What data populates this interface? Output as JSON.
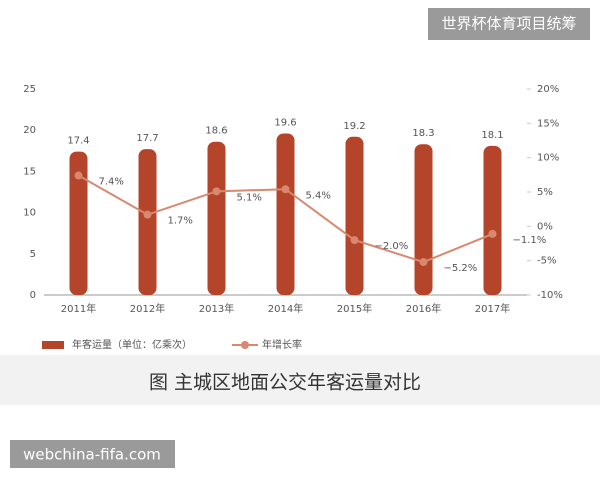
{
  "watermark_top": "世界杯体育项目统筹",
  "watermark_bottom": "webchina-fifa.com",
  "chart_data": {
    "type": "bar",
    "title": "图 主城区地面公交年客运量对比",
    "categories": [
      "2011年",
      "2012年",
      "2013年",
      "2014年",
      "2015年",
      "2016年",
      "2017年"
    ],
    "series": [
      {
        "name": "年客运量（单位：亿乘次）",
        "type": "bar",
        "color": "#b5452a",
        "values": [
          17.4,
          17.7,
          18.6,
          19.6,
          19.2,
          18.3,
          18.1
        ]
      },
      {
        "name": "年增长率",
        "type": "line",
        "axis": "y2",
        "color": "#d98870",
        "values": [
          7.4,
          1.7,
          5.1,
          5.4,
          -2.0,
          -5.2,
          -1.1
        ],
        "value_labels": [
          "7.4%",
          "1.7%",
          "5.1%",
          "5.4%",
          "−2.0%",
          "−5.2%",
          "−1.1%"
        ]
      }
    ],
    "ylim": [
      0,
      25
    ],
    "yticks": [
      0,
      5,
      10,
      15,
      20,
      25
    ],
    "y2lim": [
      -10,
      20
    ],
    "y2ticks": [
      {
        "value": -10,
        "label": "-10%"
      },
      {
        "value": -5,
        "label": "-5%"
      },
      {
        "value": 0,
        "label": "0%"
      },
      {
        "value": 5,
        "label": "5%"
      },
      {
        "value": 10,
        "label": "10%"
      },
      {
        "value": 15,
        "label": "15%"
      },
      {
        "value": 20,
        "label": "20%"
      }
    ],
    "grid": false
  }
}
